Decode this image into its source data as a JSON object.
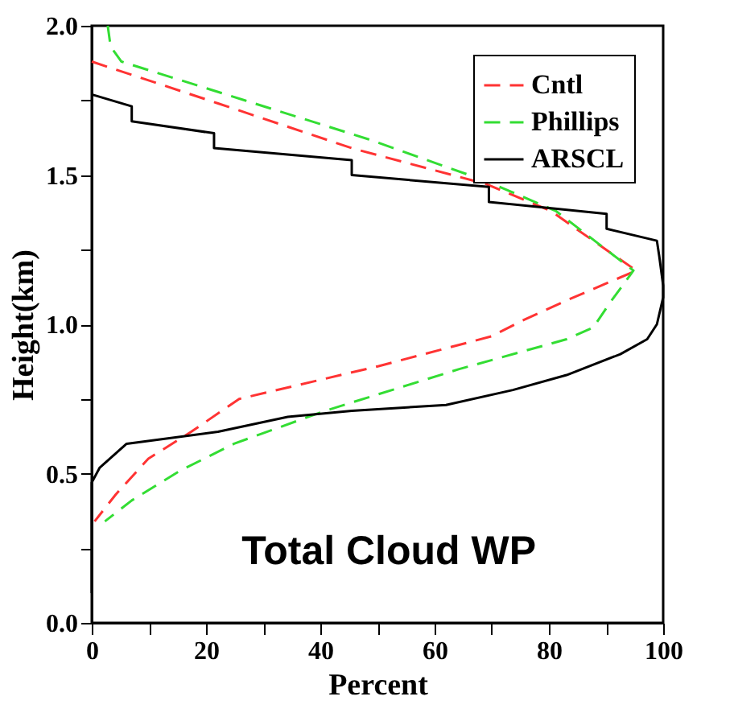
{
  "chart_data": {
    "type": "line",
    "xlabel": "Percent",
    "ylabel": "Height(km)",
    "annotations": [
      "Total Cloud WP"
    ],
    "xlim": [
      0,
      100
    ],
    "ylim": [
      0,
      2
    ],
    "xticks": [
      0,
      {
        "value": 10,
        "label": null
      },
      20,
      {
        "value": 30,
        "label": null
      },
      40,
      {
        "value": 50,
        "label": null
      },
      60,
      {
        "value": 70,
        "label": null
      },
      80,
      {
        "value": 90,
        "label": null
      },
      100
    ],
    "yticks": [
      {
        "value": 0,
        "label": "0.0"
      },
      {
        "value": 0.25,
        "label": null
      },
      0.5,
      {
        "value": 0.75,
        "label": null
      },
      {
        "value": 1,
        "label": "1.0"
      },
      {
        "value": 1.25,
        "label": null
      },
      1.5,
      {
        "value": 1.75,
        "label": null
      },
      {
        "value": 2,
        "label": "2.0"
      }
    ],
    "legend": "top right",
    "grid": false,
    "series": [
      {
        "name": "Cntl",
        "color": "#ff3333",
        "line_style": "dashed",
        "x": [
          0,
          22.1,
          45.5,
          69,
          80.3,
          91.5,
          95.3,
          83.1,
          75.1,
          70,
          50.2,
          25.8,
          17.4,
          9.9,
          4.2,
          0.5
        ],
        "values": [
          1.88,
          1.74,
          1.59,
          1.47,
          1.38,
          1.23,
          1.18,
          1.08,
          1.01,
          0.96,
          0.86,
          0.75,
          0.64,
          0.55,
          0.43,
          0.34
        ]
      },
      {
        "name": "Phillips",
        "color": "#33dd33",
        "line_style": "dashed",
        "x": [
          2.8,
          3.3,
          5.2,
          26.8,
          48.4,
          69,
          81.2,
          94.8,
          90.6,
          87.8,
          83.1,
          64.3,
          40.8,
          24.9,
          15.5,
          7,
          2.3
        ],
        "values": [
          2.0,
          1.93,
          1.88,
          1.75,
          1.62,
          1.48,
          1.38,
          1.18,
          1.07,
          0.99,
          0.95,
          0.85,
          0.71,
          0.6,
          0.51,
          0.41,
          0.34
        ]
      },
      {
        "name": "ARSCL",
        "color": "#000000",
        "line_style": "solid",
        "x": [
          0,
          7,
          7,
          21.4,
          21.4,
          45.5,
          45.5,
          69.5,
          69.5,
          90.1,
          90.1,
          98.9,
          99.3,
          100,
          100,
          98.9,
          97.2,
          92.5,
          83.1,
          73.7,
          62,
          45.5,
          34.3,
          22.1,
          6.1,
          1.4,
          0,
          0
        ],
        "values": [
          1.77,
          1.73,
          1.68,
          1.64,
          1.59,
          1.55,
          1.5,
          1.46,
          1.41,
          1.37,
          1.32,
          1.28,
          1.23,
          1.13,
          1.09,
          1.0,
          0.95,
          0.9,
          0.83,
          0.78,
          0.73,
          0.71,
          0.69,
          0.64,
          0.6,
          0.52,
          0.47,
          0.1
        ]
      }
    ]
  }
}
